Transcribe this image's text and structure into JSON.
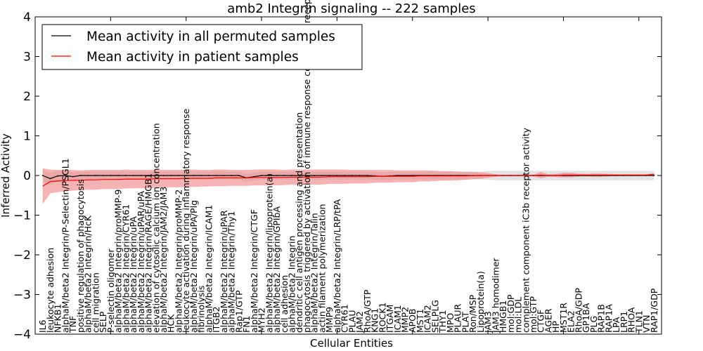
{
  "chart_data": {
    "type": "line",
    "title": "amb2 Integrin signaling -- 222 samples",
    "xlabel": "Cellular Entities",
    "ylabel": "Inferred Activity",
    "ylim": [
      -4,
      4
    ],
    "xlim": [
      0,
      83
    ],
    "yticks": [
      -4,
      -3,
      -2,
      -1,
      0,
      1,
      2,
      3,
      4
    ],
    "ytick_labels": [
      "−4",
      "−3",
      "−2",
      "−1",
      "0",
      "1",
      "2",
      "3",
      "4"
    ],
    "legend": {
      "placement": "top-left",
      "entries": [
        {
          "label": "Mean activity in all permuted samples",
          "color": "#000000"
        },
        {
          "label": "Mean activity in patient samples",
          "color": "#ff0000"
        }
      ]
    },
    "categories": [
      "IL6",
      "leukocyte adhesion",
      "NFKB1",
      "alphaM/beta2 Integrin/P-Selectin/PSGL1",
      "TNF",
      "positive regulation of phagocytosis",
      "alphaM/beta2 Integrin/HcK",
      "cell migration",
      "SELP",
      "P-selectin oligomer",
      "alphaM/beta2 Integrin/proMMP-9",
      "alphaM/beta2 Integrin/CYR61",
      "alphaM/beta2 Integrin/uPA",
      "alphaM/beta2 Integrin/uPAR/uPA",
      "alphaM/beta2 Integrin/RAGE/HMGB1",
      "elevation of cytosolic calcium ion concentration",
      "alphaM/beta2 Integrin/JAM2/JAM3",
      "HCK",
      "alphaM/beta2 Integrin/proMMP-2",
      "leukocyte activation during inflammatory response",
      "alphaM/beta2 Integrin/uPA/Plg",
      "fibrinolysis",
      "alphaM/beta2 Integrin/ICAM1",
      "ITGB2",
      "alphaM/beta2 Integrin/uPAR",
      "alphaM/beta2 Integrin/Thy1",
      "Rap1/GTP",
      "FN1",
      "alphaM/beta2 Integrin/CTGF",
      "MYH2",
      "alphaM/beta2 Integrin/lipoprotein(a)",
      "alphaM/beta2 Integrin/GPIbA",
      "cell adhesion",
      "alphaM/beta2 Integrin",
      "dendritic cell antigen processing and presentation",
      "phagocytosis triggered by activation of immune response cell surface receptor",
      "alphaM/beta2 Integrin/Talin",
      "actin filament polymerization",
      "MMP9",
      "alphaM/beta2 Integrin/LRP/tPA",
      "CYR61",
      "PLAU",
      "JAM2",
      "RhoA/GTP",
      "KNG1",
      "ROCK1",
      "ITGAM",
      "ICAM1",
      "MMP2",
      "APOB",
      "MST1",
      "ICAM2",
      "SELPLG",
      "THY1",
      "MPO",
      "PLAUR",
      "PLAT",
      "Ron/MSP",
      "Lipoprotein(a)",
      "JAM3",
      "JAM3 homodimer",
      "HMGB1",
      "mol:GDP",
      "mol:LDL",
      "complement component iC3b receptor activity",
      "mol:GTP",
      "CTGF",
      "AGER",
      "HP",
      "MST1R",
      "ELA2",
      "RhoA/GDP",
      "GP1BA",
      "PLG",
      "RAP1B",
      "RAP1A",
      "LPA",
      "LRP1",
      "RHOA",
      "TLN1",
      "VTN",
      "RAP1/GDP"
    ],
    "series": [
      {
        "name": "Mean activity in all permuted samples",
        "color": "#000000",
        "band_color": "#c8c8c8",
        "values": [
          0.0,
          -0.08,
          -0.01,
          0.0,
          -0.03,
          0.0,
          0.0,
          0.0,
          0.0,
          0.0,
          0.0,
          0.0,
          0.0,
          0.0,
          0.0,
          0.0,
          0.0,
          0.0,
          0.0,
          0.0,
          0.0,
          0.0,
          0.0,
          0.0,
          0.0,
          0.0,
          0.0,
          -0.06,
          -0.03,
          0.0,
          0.0,
          0.0,
          0.0,
          0.0,
          0.0,
          0.0,
          0.0,
          0.0,
          0.0,
          0.0,
          0.0,
          0.0,
          0.0,
          0.0,
          -0.01,
          -0.02,
          -0.01,
          0.0,
          0.0,
          0.0,
          0.0,
          0.0,
          0.0,
          0.0,
          0.0,
          0.0,
          0.0,
          0.0,
          0.0,
          0.0,
          0.0,
          0.0,
          0.0,
          0.0,
          0.0,
          0.0,
          0.0,
          0.0,
          0.0,
          0.0,
          0.0,
          0.0,
          0.0,
          0.0,
          0.0,
          0.0,
          0.0,
          0.0,
          0.0,
          0.0,
          0.0,
          0.0
        ],
        "std": [
          0.15,
          0.15,
          0.14,
          0.13,
          0.11,
          0.1,
          0.1,
          0.1,
          0.1,
          0.1,
          0.1,
          0.1,
          0.1,
          0.1,
          0.1,
          0.1,
          0.1,
          0.1,
          0.1,
          0.1,
          0.1,
          0.1,
          0.1,
          0.1,
          0.1,
          0.1,
          0.1,
          0.1,
          0.1,
          0.1,
          0.1,
          0.1,
          0.1,
          0.1,
          0.1,
          0.1,
          0.1,
          0.1,
          0.1,
          0.1,
          0.1,
          0.1,
          0.1,
          0.1,
          0.1,
          0.1,
          0.1,
          0.1,
          0.1,
          0.1,
          0.1,
          0.1,
          0.1,
          0.1,
          0.1,
          0.1,
          0.1,
          0.1,
          0.1,
          0.11,
          0.12,
          0.12,
          0.12,
          0.12,
          0.12,
          0.12,
          0.12,
          0.12,
          0.12,
          0.12,
          0.12,
          0.12,
          0.12,
          0.12,
          0.12,
          0.12,
          0.12,
          0.12,
          0.12,
          0.12,
          0.12,
          0.12
        ]
      },
      {
        "name": "Mean activity in patient samples",
        "color": "#ff0000",
        "band_color": "#f08080",
        "values": [
          -0.27,
          -0.15,
          -0.14,
          -0.13,
          -0.12,
          -0.12,
          -0.11,
          -0.11,
          -0.1,
          -0.1,
          -0.1,
          -0.09,
          -0.09,
          -0.09,
          -0.09,
          -0.08,
          -0.08,
          -0.08,
          -0.08,
          -0.07,
          -0.07,
          -0.07,
          -0.07,
          -0.06,
          -0.06,
          -0.06,
          -0.06,
          -0.06,
          -0.05,
          -0.05,
          -0.05,
          -0.05,
          -0.05,
          -0.04,
          -0.04,
          -0.04,
          -0.04,
          -0.04,
          -0.03,
          -0.03,
          -0.03,
          -0.03,
          -0.03,
          -0.03,
          -0.02,
          -0.02,
          -0.02,
          -0.02,
          -0.02,
          -0.02,
          -0.01,
          -0.01,
          -0.01,
          -0.01,
          -0.01,
          -0.01,
          -0.01,
          0.0,
          0.0,
          0.0,
          0.0,
          0.0,
          0.0,
          0.0,
          0.0,
          0.0,
          0.01,
          0.0,
          0.0,
          0.01,
          0.01,
          0.01,
          0.01,
          0.01,
          0.01,
          0.01,
          0.01,
          0.01,
          0.01,
          0.01,
          0.01,
          0.03
        ],
        "std": [
          0.45,
          0.3,
          0.28,
          0.27,
          0.26,
          0.25,
          0.25,
          0.25,
          0.24,
          0.24,
          0.24,
          0.24,
          0.23,
          0.23,
          0.23,
          0.23,
          0.22,
          0.22,
          0.22,
          0.22,
          0.22,
          0.21,
          0.21,
          0.21,
          0.21,
          0.2,
          0.2,
          0.2,
          0.2,
          0.2,
          0.2,
          0.2,
          0.19,
          0.19,
          0.19,
          0.19,
          0.19,
          0.19,
          0.18,
          0.18,
          0.18,
          0.17,
          0.17,
          0.17,
          0.16,
          0.16,
          0.16,
          0.15,
          0.15,
          0.15,
          0.14,
          0.14,
          0.13,
          0.12,
          0.12,
          0.11,
          0.1,
          0.09,
          0.08,
          0.06,
          0.03,
          0.02,
          0.02,
          0.02,
          0.02,
          0.02,
          0.08,
          0.03,
          0.04,
          0.06,
          0.06,
          0.04,
          0.03,
          0.04,
          0.04,
          0.03,
          0.02,
          0.02,
          0.02,
          0.02,
          0.02,
          0.03
        ]
      }
    ]
  }
}
